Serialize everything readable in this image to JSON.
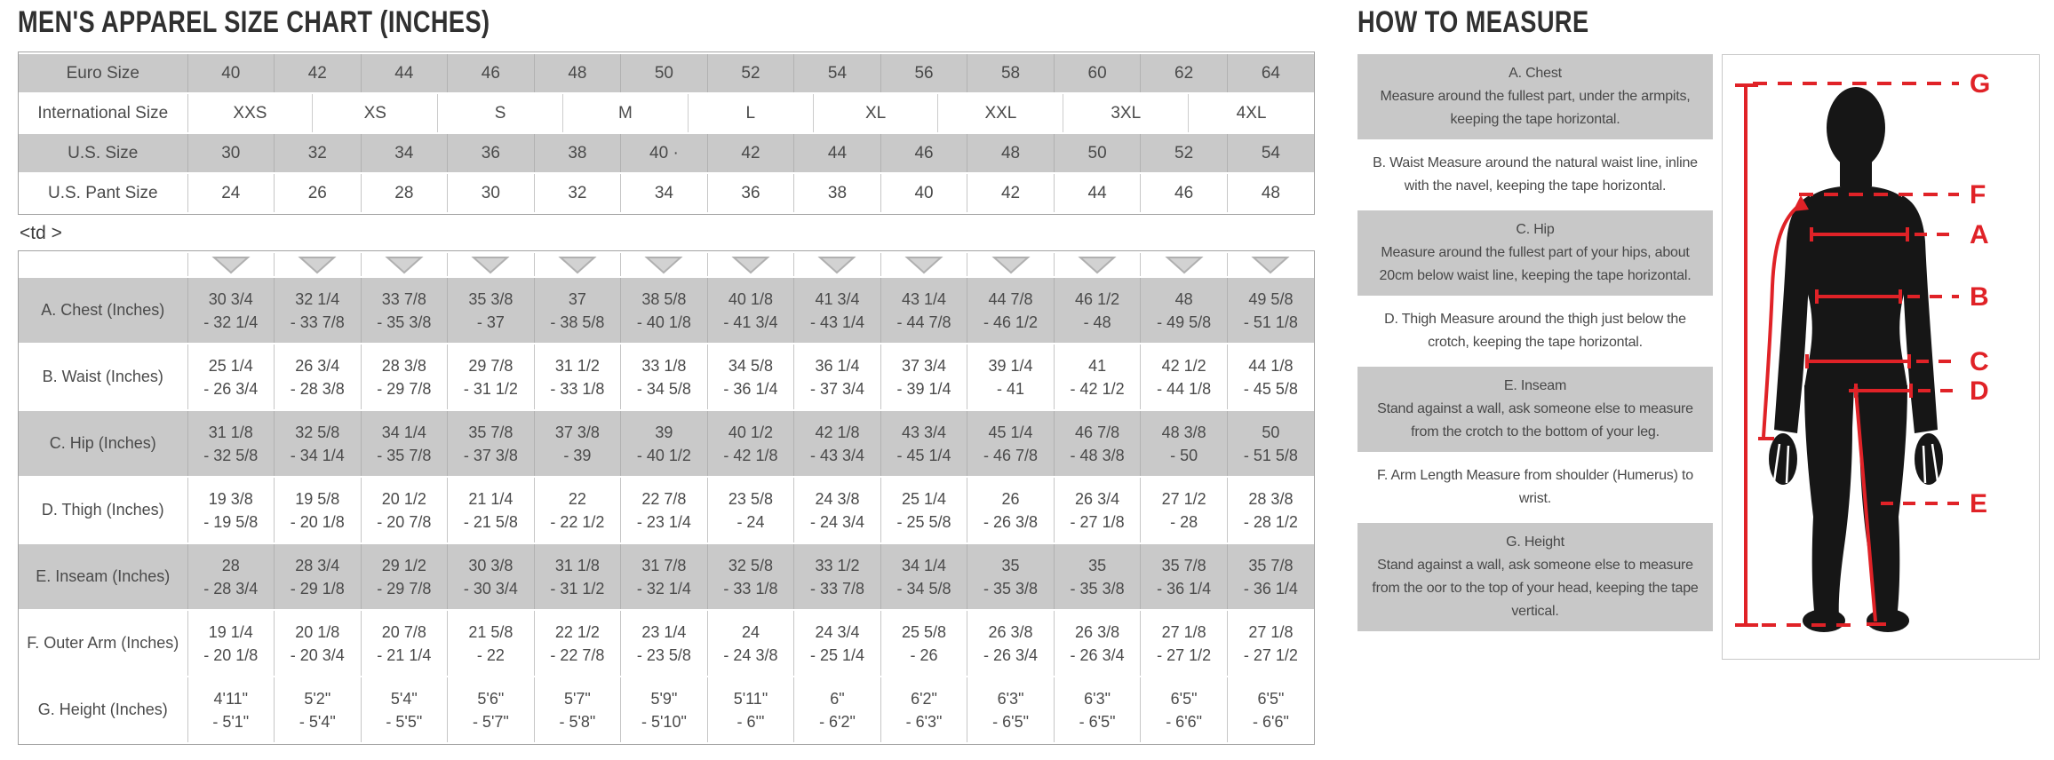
{
  "title": "MEN'S APPAREL SIZE CHART (INCHES)",
  "stray_text": "<td >",
  "size_table": {
    "rows": [
      {
        "label": "Euro Size",
        "values": [
          "40",
          "42",
          "44",
          "46",
          "48",
          "50",
          "52",
          "54",
          "56",
          "58",
          "60",
          "62",
          "64"
        ]
      },
      {
        "label": "International Size",
        "columns": 9,
        "values": [
          "XXS",
          "XS",
          "S",
          "M",
          "L",
          "XL",
          "XXL",
          "3XL",
          "4XL"
        ]
      },
      {
        "label": "U.S. Size",
        "values": [
          "30",
          "32",
          "34",
          "36",
          "38",
          "40 ·",
          "42",
          "44",
          "46",
          "48",
          "50",
          "52",
          "54"
        ]
      },
      {
        "label": "U.S. Pant Size",
        "values": [
          "24",
          "26",
          "28",
          "30",
          "32",
          "34",
          "36",
          "38",
          "40",
          "42",
          "44",
          "46",
          "48"
        ]
      }
    ]
  },
  "measurement_table": {
    "dropdown_icon": "down-triangle",
    "rows": [
      {
        "label": "A. Chest (Inches)",
        "values": [
          [
            "30 3/4",
            "- 32 1/4"
          ],
          [
            "32 1/4",
            "- 33 7/8"
          ],
          [
            "33 7/8",
            "- 35 3/8"
          ],
          [
            "35 3/8",
            "- 37"
          ],
          [
            "37",
            "- 38 5/8"
          ],
          [
            "38 5/8",
            "- 40 1/8"
          ],
          [
            "40 1/8",
            "- 41 3/4"
          ],
          [
            "41 3/4",
            "- 43 1/4"
          ],
          [
            "43 1/4",
            "- 44 7/8"
          ],
          [
            "44 7/8",
            "- 46 1/2"
          ],
          [
            "46 1/2",
            "- 48"
          ],
          [
            "48",
            "- 49 5/8"
          ],
          [
            "49 5/8",
            "- 51 1/8"
          ]
        ]
      },
      {
        "label": "B. Waist (Inches)",
        "values": [
          [
            "25 1/4",
            "- 26 3/4"
          ],
          [
            "26 3/4",
            "- 28 3/8"
          ],
          [
            "28 3/8",
            "- 29 7/8"
          ],
          [
            "29 7/8",
            "- 31 1/2"
          ],
          [
            "31 1/2",
            "- 33 1/8"
          ],
          [
            "33 1/8",
            "- 34 5/8"
          ],
          [
            "34 5/8",
            "- 36 1/4"
          ],
          [
            "36 1/4",
            "- 37 3/4"
          ],
          [
            "37 3/4",
            "- 39 1/4"
          ],
          [
            "39 1/4",
            "- 41"
          ],
          [
            "41",
            "- 42 1/2"
          ],
          [
            "42 1/2",
            "- 44 1/8"
          ],
          [
            "44 1/8",
            "- 45 5/8"
          ]
        ]
      },
      {
        "label": "C. Hip (Inches)",
        "values": [
          [
            "31 1/8",
            "- 32 5/8"
          ],
          [
            "32 5/8",
            "- 34 1/4"
          ],
          [
            "34 1/4",
            "- 35 7/8"
          ],
          [
            "35 7/8",
            "- 37 3/8"
          ],
          [
            "37 3/8",
            "- 39"
          ],
          [
            "39",
            "- 40 1/2"
          ],
          [
            "40 1/2",
            "- 42 1/8"
          ],
          [
            "42 1/8",
            "- 43 3/4"
          ],
          [
            "43 3/4",
            "- 45 1/4"
          ],
          [
            "45 1/4",
            "- 46 7/8"
          ],
          [
            "46 7/8",
            "- 48 3/8"
          ],
          [
            "48 3/8",
            "- 50"
          ],
          [
            "50",
            "- 51 5/8"
          ]
        ]
      },
      {
        "label": "D. Thigh (Inches)",
        "values": [
          [
            "19 3/8",
            "- 19 5/8"
          ],
          [
            "19 5/8",
            "- 20 1/8"
          ],
          [
            "20 1/2",
            "- 20 7/8"
          ],
          [
            "21 1/4",
            "- 21 5/8"
          ],
          [
            "22",
            "- 22 1/2"
          ],
          [
            "22 7/8",
            "- 23 1/4"
          ],
          [
            "23 5/8",
            "- 24"
          ],
          [
            "24 3/8",
            "- 24 3/4"
          ],
          [
            "25 1/4",
            "- 25 5/8"
          ],
          [
            "26",
            "- 26 3/8"
          ],
          [
            "26 3/4",
            "- 27 1/8"
          ],
          [
            "27 1/2",
            "- 28"
          ],
          [
            "28 3/8",
            "- 28 1/2"
          ]
        ]
      },
      {
        "label": "E. Inseam (Inches)",
        "values": [
          [
            "28",
            "- 28 3/4"
          ],
          [
            "28 3/4",
            "- 29 1/8"
          ],
          [
            "29 1/2",
            "- 29 7/8"
          ],
          [
            "30 3/8",
            "- 30 3/4"
          ],
          [
            "31 1/8",
            "- 31 1/2"
          ],
          [
            "31 7/8",
            "- 32 1/4"
          ],
          [
            "32 5/8",
            "- 33 1/8"
          ],
          [
            "33 1/2",
            "- 33 7/8"
          ],
          [
            "34 1/4",
            "- 34 5/8"
          ],
          [
            "35",
            "- 35 3/8"
          ],
          [
            "35",
            "- 35 3/8"
          ],
          [
            "35 7/8",
            "- 36 1/4"
          ],
          [
            "35 7/8",
            "- 36 1/4"
          ]
        ]
      },
      {
        "label": "F. Outer Arm (Inches)",
        "values": [
          [
            "19 1/4",
            "- 20 1/8"
          ],
          [
            "20 1/8",
            "- 20 3/4"
          ],
          [
            "20 7/8",
            "- 21 1/4"
          ],
          [
            "21 5/8",
            "- 22"
          ],
          [
            "22 1/2",
            "- 22 7/8"
          ],
          [
            "23 1/4",
            "- 23 5/8"
          ],
          [
            "24",
            "- 24 3/8"
          ],
          [
            "24 3/4",
            "- 25 1/4"
          ],
          [
            "25 5/8",
            "- 26"
          ],
          [
            "26 3/8",
            "- 26 3/4"
          ],
          [
            "26 3/8",
            "- 26 3/4"
          ],
          [
            "27 1/8",
            "- 27 1/2"
          ],
          [
            "27 1/8",
            "- 27 1/2"
          ]
        ]
      },
      {
        "label": "G. Height (Inches)",
        "values": [
          [
            "4'11\"",
            "- 5'1\""
          ],
          [
            "5'2\"",
            "- 5'4\""
          ],
          [
            "5'4\"",
            "- 5'5\""
          ],
          [
            "5'6\"",
            "- 5'7\""
          ],
          [
            "5'7\"",
            "- 5'8\""
          ],
          [
            "5'9\"",
            "- 5'10\""
          ],
          [
            "5'11\"",
            "- 6'\""
          ],
          [
            "6\"",
            "- 6'2\""
          ],
          [
            "6'2\"",
            "- 6'3\""
          ],
          [
            "6'3\"",
            "- 6'5\""
          ],
          [
            "6'3\"",
            "- 6'5\""
          ],
          [
            "6'5\"",
            "- 6'6\""
          ],
          [
            "6'5\"",
            "- 6'6\""
          ]
        ]
      }
    ]
  },
  "how_to_measure": {
    "title": "HOW TO MEASURE",
    "instructions": [
      {
        "heading": "A. Chest",
        "text": "Measure around the fullest part, under the armpits, keeping the tape horizontal.",
        "shaded": true
      },
      {
        "heading": "",
        "text": "B. Waist Measure around the natural waist line, inline with the navel, keeping the tape horizontal.",
        "shaded": false
      },
      {
        "heading": "C. Hip",
        "text": "Measure around the fullest part of your hips, about 20cm below waist line, keeping the tape horizontal.",
        "shaded": true
      },
      {
        "heading": "",
        "text": "D. Thigh Measure around the thigh just below the crotch, keeping the tape horizontal.",
        "shaded": false
      },
      {
        "heading": "E. Inseam",
        "text": "Stand against a wall, ask someone else to measure from the crotch to the bottom of your leg.",
        "shaded": true
      },
      {
        "heading": "",
        "text": "F. Arm Length Measure from shoulder (Humerus) to wrist.",
        "shaded": false
      },
      {
        "heading": "G. Height",
        "text": "Stand against a wall, ask someone else to measure from the oor to the top of your head, keeping the tape vertical.",
        "shaded": true
      }
    ],
    "diagram_labels": [
      "G",
      "F",
      "A",
      "B",
      "C",
      "D",
      "E"
    ]
  },
  "colors": {
    "accent_red": "#e02227",
    "shade_gray": "#c8c8c8",
    "text_dark": "#303030"
  }
}
